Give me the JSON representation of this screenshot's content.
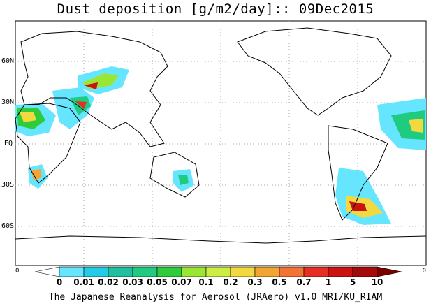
{
  "title": "Dust deposition [g/m2/day]:: 09Dec2015",
  "latitude_labels": [
    "60N",
    "30N",
    "EQ",
    "30S",
    "60S"
  ],
  "colorbar": {
    "ticks": [
      "0",
      "0.01",
      "0.02",
      "0.03",
      "0.05",
      "0.07",
      "0.1",
      "0.2",
      "0.3",
      "0.5",
      "0.7",
      "1",
      "5",
      "10"
    ],
    "colors": [
      "#ffffff",
      "#66e5ff",
      "#22cce6",
      "#1fbf9f",
      "#1fcc7f",
      "#2ecc3a",
      "#99e633",
      "#ccee44",
      "#f2d940",
      "#f2a533",
      "#f27333",
      "#e62e22",
      "#cc1111",
      "#a50a0a",
      "#7a0000"
    ],
    "end_labels": [
      "0",
      "0"
    ]
  },
  "credit": "The Japanese Reanalysis for Aerosol (JRAero) v1.0 MRI/KU_RIAM",
  "coastline_color": "#000000",
  "grid_color": "#aaaaaa"
}
